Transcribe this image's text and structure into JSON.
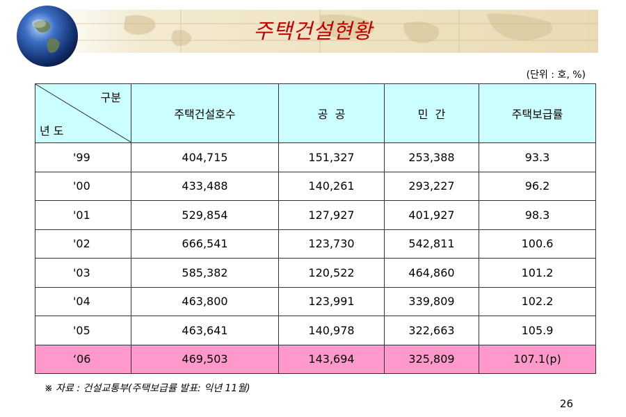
{
  "title": "주택건설현황",
  "unit_note": "(단위 : 호, %)",
  "table": {
    "corner_top": "구분",
    "corner_bottom": "년 도",
    "headers": [
      "주택건설호수",
      "공  공",
      "민  간",
      "주택보급률"
    ],
    "rows": [
      {
        "year": "'99",
        "values": [
          "404,715",
          "151,327",
          "253,388",
          "93.3"
        ]
      },
      {
        "year": "'00",
        "values": [
          "433,488",
          "140,261",
          "293,227",
          "96.2"
        ]
      },
      {
        "year": "'01",
        "values": [
          "529,854",
          "127,927",
          "401,927",
          "98.3"
        ]
      },
      {
        "year": "'02",
        "values": [
          "666,541",
          "123,730",
          "542,811",
          "100.6"
        ]
      },
      {
        "year": "'03",
        "values": [
          "585,382",
          "120,522",
          "464,860",
          "101.2"
        ]
      },
      {
        "year": "'04",
        "values": [
          "463,800",
          "123,991",
          "339,809",
          "102.2"
        ]
      },
      {
        "year": "'05",
        "values": [
          "463,641",
          "140,978",
          "322,663",
          "105.9"
        ]
      },
      {
        "year": "‘06",
        "values": [
          "469,503",
          "143,694",
          "325,809",
          "107.1(p)"
        ]
      }
    ]
  },
  "footnote": "※ 자료 : 건설교통부(주택보급률 발표: 익년 11월)",
  "page_number": "26",
  "colors": {
    "title": "#c00000",
    "header_bg": "#ccffff",
    "highlight_row": "#ff99cc"
  },
  "icons": {
    "banner_logo": "globe-icon"
  }
}
